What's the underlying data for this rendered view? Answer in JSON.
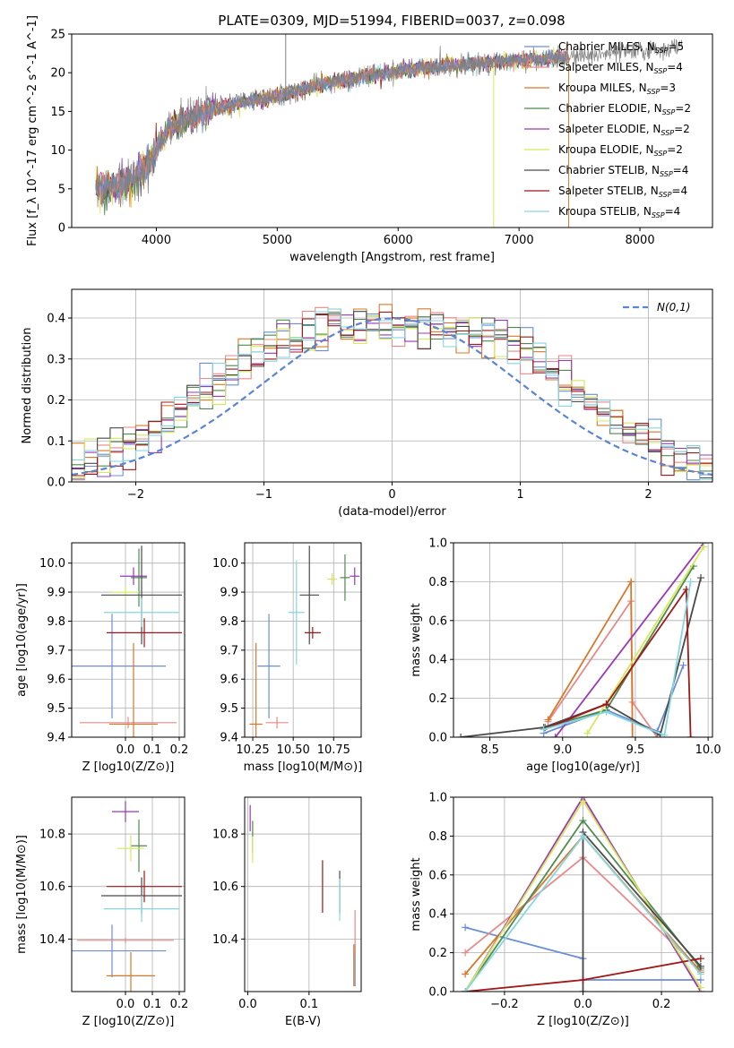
{
  "figure": {
    "title": "PLATE=0309, MJD=51994, FIBERID=0037, z=0.098"
  },
  "models": [
    {
      "name": "Chabrier MILES",
      "nssp": "5",
      "color": "#6a8fd8"
    },
    {
      "name": "Salpeter MILES",
      "nssp": "4",
      "color": "#e88a8a"
    },
    {
      "name": "Kroupa MILES",
      "nssp": "3",
      "color": "#d9782a"
    },
    {
      "name": "Chabrier ELODIE",
      "nssp": "2",
      "color": "#4e8a4e"
    },
    {
      "name": "Salpeter ELODIE",
      "nssp": "2",
      "color": "#9b38b5"
    },
    {
      "name": "Kroupa ELODIE",
      "nssp": "2",
      "color": "#d6e85a"
    },
    {
      "name": "Chabrier STELIB",
      "nssp": "4",
      "color": "#4a4a4a"
    },
    {
      "name": "Salpeter STELIB",
      "nssp": "4",
      "color": "#a11818"
    },
    {
      "name": "Kroupa STELIB",
      "nssp": "4",
      "color": "#86d6e0"
    }
  ],
  "chart_data": [
    {
      "id": "spectrum",
      "type": "line",
      "xlabel": "wavelength [Angstrom, rest frame]",
      "ylabel": "Flux [f_λ 10^-17 erg cm^-2 s^-1 A^-1]",
      "xlim": [
        3300,
        8600
      ],
      "ylim": [
        0,
        25
      ],
      "xticks": [
        4000,
        5000,
        6000,
        7000,
        8000
      ],
      "yticks": [
        0,
        5,
        10,
        15,
        20,
        25
      ],
      "grid": false,
      "legend": "upper right",
      "observed_color": "#808080",
      "observed_range": [
        3500,
        8350
      ],
      "model_range": [
        3500,
        7410
      ],
      "continuum": [
        [
          3500,
          5.0
        ],
        [
          3800,
          6.0
        ],
        [
          3950,
          8.5
        ],
        [
          4100,
          13.0
        ],
        [
          4500,
          15.5
        ],
        [
          5000,
          17.0
        ],
        [
          5500,
          19.0
        ],
        [
          6000,
          20.2
        ],
        [
          6500,
          21.0
        ],
        [
          7000,
          21.6
        ],
        [
          7400,
          22.0
        ],
        [
          8000,
          22.8
        ],
        [
          8350,
          23.3
        ]
      ],
      "spikes": [
        [
          5070,
          25
        ],
        [
          6790,
          0
        ],
        [
          7410,
          0
        ]
      ]
    },
    {
      "id": "residuals",
      "type": "histogram",
      "xlabel": "(data-model)/error",
      "ylabel": "Normed distribution",
      "xlim": [
        -2.5,
        2.5
      ],
      "ylim": [
        0,
        0.47
      ],
      "xticks": [
        -2,
        -1,
        0,
        1,
        2
      ],
      "yticks": [
        0,
        0.1,
        0.2,
        0.3,
        0.4
      ],
      "grid": true,
      "legend": "upper right",
      "reference": {
        "name": "N(0,1)",
        "color": "#5b84d6"
      },
      "bin_width": 0.1
    },
    {
      "id": "age_vs_Z",
      "type": "errorbar",
      "xlabel": "Z [log10(Z/Z⊙)]",
      "ylabel": "age [log10(age/yr)]",
      "xlim": [
        -0.2,
        0.22
      ],
      "ylim": [
        9.4,
        10.07
      ],
      "xticks": [
        0.0,
        0.1,
        0.2
      ],
      "yticks": [
        9.4,
        9.5,
        9.6,
        9.7,
        9.8,
        9.9,
        10.0
      ],
      "grid": true,
      "points": [
        {
          "model": 0,
          "x": -0.05,
          "y": 9.645,
          "xerr": 0.2,
          "yerr": 0.18
        },
        {
          "model": 1,
          "x": 0.01,
          "y": 9.45,
          "xerr": 0.18,
          "yerr": 0.02
        },
        {
          "model": 2,
          "x": 0.03,
          "y": 9.445,
          "xerr": 0.09,
          "yerr": 0.28
        },
        {
          "model": 3,
          "x": 0.05,
          "y": 9.95,
          "xerr": 0.03,
          "yerr": 0.1
        },
        {
          "model": 4,
          "x": 0.03,
          "y": 9.955,
          "xerr": 0.05,
          "yerr": 0.03
        },
        {
          "model": 5,
          "x": 0.0,
          "y": 9.9,
          "xerr": 0.05,
          "yerr": 0.02
        },
        {
          "model": 6,
          "x": 0.06,
          "y": 9.89,
          "xerr": 0.15,
          "yerr": 0.17
        },
        {
          "model": 7,
          "x": 0.07,
          "y": 9.76,
          "xerr": 0.14,
          "yerr": 0.05
        },
        {
          "model": 8,
          "x": 0.06,
          "y": 9.83,
          "xerr": 0.14,
          "yerr": 0.05
        }
      ]
    },
    {
      "id": "age_vs_mass",
      "type": "errorbar",
      "xlabel": "mass [log10(M/M⊙)]",
      "ylabel": "",
      "xlim": [
        10.2,
        10.92
      ],
      "ylim": [
        9.4,
        10.07
      ],
      "xticks": [
        10.25,
        10.5,
        10.75
      ],
      "yticks": [
        9.4,
        9.5,
        9.6,
        9.7,
        9.8,
        9.9,
        10.0
      ],
      "grid": true,
      "points": [
        {
          "model": 0,
          "x": 10.35,
          "y": 9.645,
          "xerr": 0.07,
          "yerr": 0.18
        },
        {
          "model": 1,
          "x": 10.4,
          "y": 9.45,
          "xerr": 0.07,
          "yerr": 0.02
        },
        {
          "model": 2,
          "x": 10.27,
          "y": 9.445,
          "xerr": 0.04,
          "yerr": 0.28
        },
        {
          "model": 3,
          "x": 10.82,
          "y": 9.95,
          "xerr": 0.03,
          "yerr": 0.08
        },
        {
          "model": 4,
          "x": 10.88,
          "y": 9.955,
          "xerr": 0.03,
          "yerr": 0.03
        },
        {
          "model": 5,
          "x": 10.74,
          "y": 9.945,
          "xerr": 0.03,
          "yerr": 0.02
        },
        {
          "model": 6,
          "x": 10.6,
          "y": 9.89,
          "xerr": 0.06,
          "yerr": 0.17
        },
        {
          "model": 7,
          "x": 10.62,
          "y": 9.76,
          "xerr": 0.05,
          "yerr": 0.02
        },
        {
          "model": 8,
          "x": 10.52,
          "y": 9.83,
          "xerr": 0.05,
          "yerr": 0.18
        }
      ]
    },
    {
      "id": "weight_vs_age",
      "type": "line",
      "xlabel": "age [log10(age/yr)]",
      "ylabel": "mass weight",
      "xlim": [
        8.25,
        10.03
      ],
      "ylim": [
        0,
        1.0
      ],
      "xticks": [
        8.5,
        9.0,
        9.5,
        10.0
      ],
      "yticks": [
        0,
        0.2,
        0.4,
        0.6,
        0.8,
        1.0
      ],
      "grid": true,
      "series": [
        {
          "model": 0,
          "x": [
            8.87,
            9.3,
            9.65,
            9.83
          ],
          "y": [
            0.02,
            0.14,
            0.03,
            0.37
          ]
        },
        {
          "model": 1,
          "x": [
            8.9,
            9.47,
            9.48,
            9.65
          ],
          "y": [
            0.08,
            0.7,
            0.18,
            0.0
          ]
        },
        {
          "model": 2,
          "x": [
            8.9,
            9.47,
            9.48
          ],
          "y": [
            0.09,
            0.8,
            0.0
          ]
        },
        {
          "model": 3,
          "x": [
            8.88,
            9.3,
            9.9
          ],
          "y": [
            0.05,
            0.14,
            0.88
          ]
        },
        {
          "model": 4,
          "x": [
            8.95,
            9.97
          ],
          "y": [
            0.0,
            1.0
          ]
        },
        {
          "model": 5,
          "x": [
            9.17,
            9.97
          ],
          "y": [
            0.02,
            0.98
          ]
        },
        {
          "model": 6,
          "x": [
            8.3,
            8.87,
            9.3,
            9.67,
            9.95
          ],
          "y": [
            0.0,
            0.05,
            0.17,
            0.01,
            0.82
          ]
        },
        {
          "model": 7,
          "x": [
            8.87,
            9.3,
            9.85,
            9.88
          ],
          "y": [
            0.04,
            0.17,
            0.76,
            0.0
          ]
        },
        {
          "model": 8,
          "x": [
            8.87,
            9.3,
            9.7,
            9.88
          ],
          "y": [
            0.04,
            0.13,
            0.01,
            0.8
          ]
        }
      ]
    },
    {
      "id": "mass_vs_Z",
      "type": "errorbar",
      "xlabel": "Z [log10(Z/Z⊙)]",
      "ylabel": "mass [log10(M/M⊙)]",
      "xlim": [
        -0.2,
        0.22
      ],
      "ylim": [
        10.2,
        10.94
      ],
      "xticks": [
        0.0,
        0.1,
        0.2
      ],
      "yticks": [
        10.4,
        10.6,
        10.8
      ],
      "grid": true,
      "points": [
        {
          "model": 0,
          "x": -0.05,
          "y": 10.355,
          "xerr": 0.2,
          "yerr": 0.1
        },
        {
          "model": 1,
          "x": 0.0,
          "y": 10.395,
          "xerr": 0.18,
          "yerr": 0.01
        },
        {
          "model": 2,
          "x": 0.02,
          "y": 10.26,
          "xerr": 0.09,
          "yerr": 0.09
        },
        {
          "model": 3,
          "x": 0.05,
          "y": 10.755,
          "xerr": 0.03,
          "yerr": 0.1
        },
        {
          "model": 4,
          "x": 0.0,
          "y": 10.885,
          "xerr": 0.05,
          "yerr": 0.04
        },
        {
          "model": 5,
          "x": 0.02,
          "y": 10.745,
          "xerr": 0.05,
          "yerr": 0.05
        },
        {
          "model": 6,
          "x": 0.06,
          "y": 10.565,
          "xerr": 0.15,
          "yerr": 0.07
        },
        {
          "model": 7,
          "x": 0.07,
          "y": 10.6,
          "xerr": 0.14,
          "yerr": 0.06
        },
        {
          "model": 8,
          "x": 0.06,
          "y": 10.515,
          "xerr": 0.14,
          "yerr": 0.05
        }
      ]
    },
    {
      "id": "mass_vs_ebv",
      "type": "errorbar",
      "xlabel": "E(B-V)",
      "ylabel": "",
      "xlim": [
        -0.005,
        0.185
      ],
      "ylim": [
        10.2,
        10.94
      ],
      "xticks": [
        0.0,
        0.1
      ],
      "yticks": [
        10.4,
        10.6,
        10.8
      ],
      "grid": true,
      "points": [
        {
          "model": 0,
          "x": 0.175,
          "y": 10.3,
          "xerr": 0,
          "yerr": 0.08
        },
        {
          "model": 1,
          "x": 0.175,
          "y": 10.43,
          "xerr": 0,
          "yerr": 0.08
        },
        {
          "model": 2,
          "x": 0.173,
          "y": 10.3,
          "xerr": 0,
          "yerr": 0.08
        },
        {
          "model": 3,
          "x": 0.008,
          "y": 10.79,
          "xerr": 0,
          "yerr": 0.06
        },
        {
          "model": 4,
          "x": 0.004,
          "y": 10.86,
          "xerr": 0,
          "yerr": 0.05
        },
        {
          "model": 5,
          "x": 0.008,
          "y": 10.74,
          "xerr": 0,
          "yerr": 0.05
        },
        {
          "model": 6,
          "x": 0.15,
          "y": 10.58,
          "xerr": 0,
          "yerr": 0.08
        },
        {
          "model": 7,
          "x": 0.122,
          "y": 10.6,
          "xerr": 0,
          "yerr": 0.1
        },
        {
          "model": 8,
          "x": 0.15,
          "y": 10.55,
          "xerr": 0,
          "yerr": 0.08
        }
      ]
    },
    {
      "id": "weight_vs_Z",
      "type": "line",
      "xlabel": "Z [log10(Z/Z⊙)]",
      "ylabel": "mass weight",
      "xlim": [
        -0.33,
        0.33
      ],
      "ylim": [
        0,
        1.0
      ],
      "xticks": [
        -0.2,
        0.0,
        0.2
      ],
      "yticks": [
        0,
        0.2,
        0.4,
        0.6,
        0.8,
        1.0
      ],
      "grid": true,
      "series": [
        {
          "model": 0,
          "x": [
            -0.3,
            0.0,
            0.0,
            0.3
          ],
          "y": [
            0.33,
            0.17,
            0.06,
            0.06
          ]
        },
        {
          "model": 1,
          "x": [
            -0.3,
            0.0,
            0.3
          ],
          "y": [
            0.2,
            0.69,
            0.11
          ]
        },
        {
          "model": 2,
          "x": [
            -0.3,
            0.0,
            0.3
          ],
          "y": [
            0.09,
            0.8,
            0.1
          ]
        },
        {
          "model": 3,
          "x": [
            -0.3,
            0.0,
            0.3
          ],
          "y": [
            0.0,
            0.88,
            0.12
          ]
        },
        {
          "model": 4,
          "x": [
            -0.3,
            0.0,
            0.3
          ],
          "y": [
            0.0,
            1.0,
            0.0
          ]
        },
        {
          "model": 5,
          "x": [
            -0.3,
            0.0,
            0.3
          ],
          "y": [
            0.0,
            0.98,
            0.02
          ]
        },
        {
          "model": 6,
          "x": [
            0.0,
            0.0,
            0.3
          ],
          "y": [
            0.0,
            0.82,
            0.13
          ]
        },
        {
          "model": 7,
          "x": [
            -0.3,
            0.0,
            0.3
          ],
          "y": [
            0.0,
            0.06,
            0.17
          ]
        },
        {
          "model": 8,
          "x": [
            -0.3,
            0.0,
            0.3
          ],
          "y": [
            0.0,
            0.8,
            0.09
          ]
        }
      ]
    }
  ]
}
